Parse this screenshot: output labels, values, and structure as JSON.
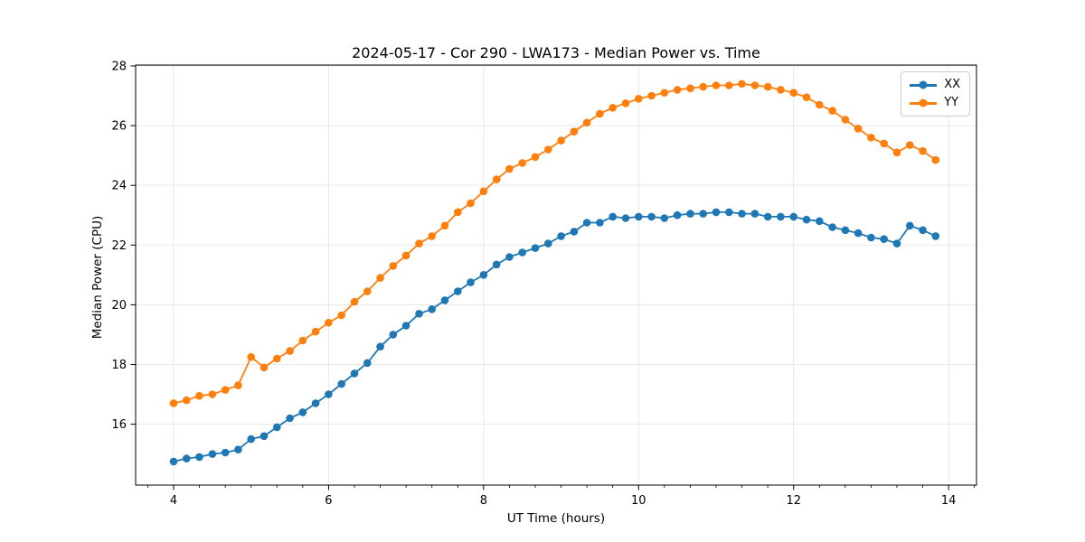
{
  "page": {
    "background_color": "#ffffff"
  },
  "chart_data": {
    "type": "line",
    "title": "2024-05-17 - Cor 290 - LWA173 - Median Power vs. Time",
    "xlabel": "UT Time (hours)",
    "ylabel": "Median Power (CPU)",
    "xlim": [
      3.51,
      14.36
    ],
    "ylim": [
      13.96,
      28.03
    ],
    "x_ticks": [
      4,
      6,
      8,
      10,
      12,
      14
    ],
    "y_ticks": [
      16,
      18,
      20,
      22,
      24,
      26,
      28
    ],
    "x_minor_tick_step": 0.33333,
    "grid": true,
    "grid_color": "#e6e6e6",
    "spine_color": "#000000",
    "legend_position": "upper right",
    "marker": "o",
    "x": [
      4,
      4.167,
      4.333,
      4.5,
      4.667,
      4.833,
      5,
      5.167,
      5.333,
      5.5,
      5.667,
      5.833,
      6,
      6.167,
      6.333,
      6.5,
      6.667,
      6.833,
      7,
      7.167,
      7.333,
      7.5,
      7.667,
      7.833,
      8,
      8.167,
      8.333,
      8.5,
      8.667,
      8.833,
      9,
      9.167,
      9.333,
      9.5,
      9.667,
      9.833,
      10,
      10.167,
      10.333,
      10.5,
      10.667,
      10.833,
      11,
      11.167,
      11.333,
      11.5,
      11.667,
      11.833,
      12,
      12.167,
      12.333,
      12.5,
      12.667,
      12.833,
      13,
      13.167,
      13.333,
      13.5,
      13.667,
      13.833
    ],
    "series": [
      {
        "name": "XX",
        "color": "#1f77b4",
        "values": [
          14.75,
          14.85,
          14.9,
          15,
          15.05,
          15.15,
          15.5,
          15.6,
          15.9,
          16.2,
          16.4,
          16.7,
          17,
          17.35,
          17.7,
          18.05,
          18.6,
          19,
          19.3,
          19.7,
          19.85,
          20.15,
          20.45,
          20.75,
          21,
          21.35,
          21.6,
          21.75,
          21.9,
          22.05,
          22.3,
          22.45,
          22.75,
          22.75,
          22.95,
          22.9,
          22.95,
          22.95,
          22.9,
          23,
          23.05,
          23.05,
          23.1,
          23.1,
          23.05,
          23.05,
          22.95,
          22.95,
          22.95,
          22.85,
          22.8,
          22.6,
          22.5,
          22.4,
          22.25,
          22.2,
          22.05,
          22.65,
          22.5,
          22.3
        ]
      },
      {
        "name": "YY",
        "color": "#ff7f0e",
        "values": [
          16.7,
          16.8,
          16.95,
          17,
          17.15,
          17.3,
          18.25,
          17.9,
          18.2,
          18.45,
          18.8,
          19.1,
          19.4,
          19.65,
          20.1,
          20.45,
          20.9,
          21.3,
          21.65,
          22.05,
          22.3,
          22.65,
          23.1,
          23.4,
          23.8,
          24.2,
          24.55,
          24.75,
          24.95,
          25.2,
          25.5,
          25.8,
          26.1,
          26.4,
          26.6,
          26.75,
          26.9,
          27,
          27.1,
          27.2,
          27.25,
          27.3,
          27.35,
          27.35,
          27.4,
          27.35,
          27.3,
          27.2,
          27.1,
          26.95,
          26.7,
          26.5,
          26.2,
          25.9,
          25.6,
          25.4,
          25.1,
          25.35,
          25.15,
          24.85
        ]
      }
    ]
  }
}
